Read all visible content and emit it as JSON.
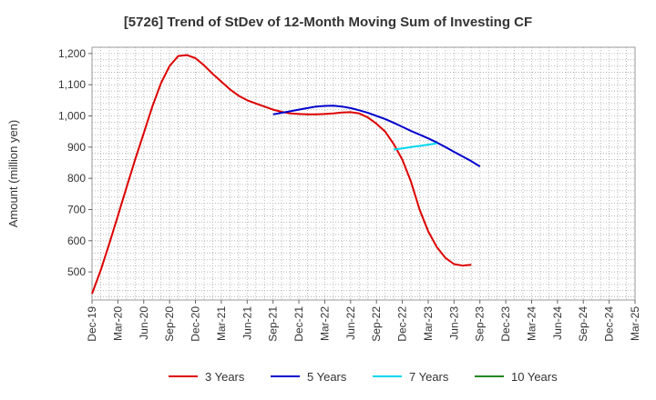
{
  "chart_data": {
    "type": "line",
    "title": "[5726]  Trend of StDev of 12-Month Moving Sum of Investing CF",
    "ylabel": "Amount (million yen)",
    "xlabel": "",
    "ylim": [
      410,
      1220
    ],
    "yticks": [
      500,
      600,
      700,
      800,
      900,
      1000,
      1100,
      1200
    ],
    "ytick_labels": [
      "500",
      "600",
      "700",
      "800",
      "900",
      "1,000",
      "1,100",
      "1,200"
    ],
    "x_tick_labels": [
      "Dec-19",
      "Mar-20",
      "Jun-20",
      "Sep-20",
      "Dec-20",
      "Mar-21",
      "Jun-21",
      "Sep-21",
      "Dec-21",
      "Mar-22",
      "Jun-22",
      "Sep-22",
      "Dec-22",
      "Mar-23",
      "Jun-23",
      "Sep-23",
      "Dec-23",
      "Mar-24",
      "Jun-24",
      "Sep-24",
      "Dec-24",
      "Mar-25"
    ],
    "grid": true,
    "legend_position": "bottom",
    "series": [
      {
        "name": "3 Years",
        "color": "#dd0000",
        "start_index": 0,
        "values": [
          430,
          505,
          590,
          680,
          770,
          860,
          945,
          1030,
          1105,
          1160,
          1192,
          1195,
          1185,
          1162,
          1135,
          1110,
          1085,
          1065,
          1050,
          1040,
          1030,
          1020,
          1013,
          1008,
          1006,
          1005,
          1005,
          1006,
          1008,
          1011,
          1012,
          1008,
          995,
          975,
          950,
          910,
          860,
          790,
          700,
          630,
          580,
          545,
          525,
          520,
          523
        ]
      },
      {
        "name": "5 Years",
        "color": "#0000cc",
        "start_index": 21,
        "values": [
          1005,
          1010,
          1015,
          1020,
          1025,
          1030,
          1032,
          1033,
          1030,
          1025,
          1018,
          1010,
          1000,
          990,
          978,
          965,
          952,
          940,
          928,
          915,
          900,
          885,
          870,
          855,
          838
        ]
      },
      {
        "name": "7 Years",
        "color": "#00d8ee",
        "start_index": 35,
        "values": [
          892,
          896,
          900,
          904,
          908,
          912
        ]
      },
      {
        "name": "10 Years",
        "color": "#228822",
        "start_index": 0,
        "values": []
      }
    ]
  }
}
